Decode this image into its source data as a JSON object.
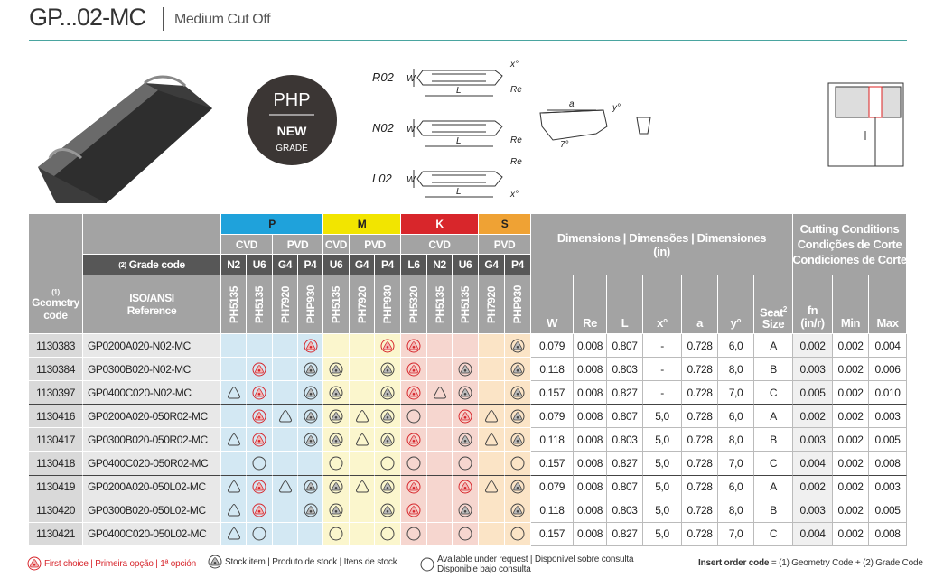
{
  "header": {
    "title": "GP...02-MC",
    "subtitle": "Medium Cut Off"
  },
  "badge": {
    "brand": "PHP",
    "new": "NEW",
    "grade": "GRADE"
  },
  "diagram": {
    "variants": [
      "R02",
      "N02",
      "L02"
    ],
    "w": "W",
    "l": "L",
    "re": "Re",
    "x": "x°",
    "a": "a",
    "y": "y°",
    "angle": "7°"
  },
  "table": {
    "geometry_note": "(1)",
    "geometry_label": "Geometry code",
    "grade_note": "(2)",
    "grade_label": "Grade code",
    "iso_label": "ISO/ANSI Reference",
    "groups": [
      {
        "name": "P",
        "color": "#1fa2db",
        "light": "#d3e8f3"
      },
      {
        "name": "M",
        "color": "#f2e500",
        "light": "#fbf6cd"
      },
      {
        "name": "K",
        "color": "#d8262b",
        "light": "#f6d6cf"
      },
      {
        "name": "S",
        "color": "#efa234",
        "light": "#fbe4c6"
      }
    ],
    "grades": [
      {
        "group": 0,
        "process": "CVD",
        "code": "N2",
        "name": "PH5135"
      },
      {
        "group": 0,
        "process": "CVD",
        "code": "U6",
        "name": "PH5135"
      },
      {
        "group": 0,
        "process": "PVD",
        "code": "G4",
        "name": "PH7920"
      },
      {
        "group": 0,
        "process": "PVD",
        "code": "P4",
        "name": "PHP930"
      },
      {
        "group": 1,
        "process": "CVD",
        "code": "U6",
        "name": "PH5135"
      },
      {
        "group": 1,
        "process": "PVD",
        "code": "G4",
        "name": "PH7920"
      },
      {
        "group": 1,
        "process": "PVD",
        "code": "P4",
        "name": "PHP930"
      },
      {
        "group": 2,
        "process": "CVD",
        "code": "L6",
        "name": "PH5320"
      },
      {
        "group": 2,
        "process": "CVD",
        "code": "N2",
        "name": "PH5135"
      },
      {
        "group": 2,
        "process": "CVD",
        "code": "U6",
        "name": "PH5135"
      },
      {
        "group": 3,
        "process": "PVD",
        "code": "G4",
        "name": "PH7920"
      },
      {
        "group": 3,
        "process": "PVD",
        "code": "P4",
        "name": "PHP930"
      }
    ],
    "dims_title": "Dimensions | Dimensões | Dimensiones",
    "dims_unit": "(in)",
    "dim_cols": [
      "W",
      "Re",
      "L",
      "x°",
      "a",
      "y°"
    ],
    "seat_label": "Seat",
    "seat_note": "2",
    "size_label": "Size",
    "cut_title": [
      "Cutting Conditions",
      "Condições de Corte",
      "Condiciones de Corte"
    ],
    "fn_label": "fn",
    "fn_unit": "(in/r)",
    "min_label": "Min",
    "max_label": "Max",
    "rows": [
      {
        "code": "1130383",
        "iso": "GP0200A020-N02-MC",
        "grades": [
          null,
          null,
          null,
          "F",
          null,
          null,
          "F",
          "F",
          null,
          null,
          null,
          "S"
        ],
        "dims": [
          "0.079",
          "0.008",
          "0.807",
          "-",
          "0.728",
          "6,0",
          "A"
        ],
        "cut": [
          "0.002",
          "0.002",
          "0.004"
        ]
      },
      {
        "code": "1130384",
        "iso": "GP0300B020-N02-MC",
        "grades": [
          null,
          "F",
          null,
          "S",
          "S",
          null,
          "S",
          "F",
          null,
          "S",
          null,
          "S"
        ],
        "dims": [
          "0.118",
          "0.008",
          "0.803",
          "-",
          "0.728",
          "8,0",
          "B"
        ],
        "cut": [
          "0.003",
          "0.002",
          "0.006"
        ]
      },
      {
        "code": "1130397",
        "iso": "GP0400C020-N02-MC",
        "grades": [
          "T",
          "F",
          null,
          "S",
          "S",
          null,
          "S",
          "F",
          "T",
          "S",
          null,
          "S"
        ],
        "dims": [
          "0.157",
          "0.008",
          "0.827",
          "-",
          "0.728",
          "7,0",
          "C"
        ],
        "cut": [
          "0.005",
          "0.002",
          "0.010"
        ]
      },
      {
        "code": "1130416",
        "iso": "GP0200A020-050R02-MC",
        "grades": [
          null,
          "F",
          "T",
          "S",
          "S",
          "T",
          "S",
          "R",
          null,
          "F",
          "T",
          "S"
        ],
        "dims": [
          "0.079",
          "0.008",
          "0.807",
          "5,0",
          "0.728",
          "6,0",
          "A"
        ],
        "cut": [
          "0.002",
          "0.002",
          "0.003"
        ]
      },
      {
        "code": "1130417",
        "iso": "GP0300B020-050R02-MC",
        "grades": [
          "T",
          "F",
          null,
          "S",
          "S",
          "T",
          "S",
          "F",
          null,
          "S",
          "T",
          "S"
        ],
        "dims": [
          "0.118",
          "0.008",
          "0.803",
          "5,0",
          "0.728",
          "8,0",
          "B"
        ],
        "cut": [
          "0.003",
          "0.002",
          "0.005"
        ]
      },
      {
        "code": "1130418",
        "iso": "GP0400C020-050R02-MC",
        "grades": [
          null,
          "R",
          null,
          null,
          "R",
          null,
          "R",
          "R",
          null,
          "R",
          null,
          "R"
        ],
        "dims": [
          "0.157",
          "0.008",
          "0.827",
          "5,0",
          "0.728",
          "7,0",
          "C"
        ],
        "cut": [
          "0.004",
          "0.002",
          "0.008"
        ]
      },
      {
        "code": "1130419",
        "iso": "GP0200A020-050L02-MC",
        "grades": [
          "T",
          "F",
          "T",
          "S",
          "S",
          "T",
          "S",
          "F",
          null,
          "F",
          "T",
          "S"
        ],
        "dims": [
          "0.079",
          "0.008",
          "0.807",
          "5,0",
          "0.728",
          "6,0",
          "A"
        ],
        "cut": [
          "0.002",
          "0.002",
          "0.003"
        ]
      },
      {
        "code": "1130420",
        "iso": "GP0300B020-050L02-MC",
        "grades": [
          "T",
          "F",
          null,
          "S",
          "S",
          null,
          "S",
          "F",
          null,
          "S",
          null,
          "S"
        ],
        "dims": [
          "0.118",
          "0.008",
          "0.803",
          "5,0",
          "0.728",
          "8,0",
          "B"
        ],
        "cut": [
          "0.003",
          "0.002",
          "0.005"
        ]
      },
      {
        "code": "1130421",
        "iso": "GP0400C020-050L02-MC",
        "grades": [
          "T",
          "R",
          null,
          null,
          "R",
          null,
          "R",
          "R",
          null,
          "R",
          null,
          "R"
        ],
        "dims": [
          "0.157",
          "0.008",
          "0.827",
          "5,0",
          "0.728",
          "7,0",
          "C"
        ],
        "cut": [
          "0.004",
          "0.002",
          "0.008"
        ]
      }
    ]
  },
  "legend": {
    "first": "First choice | Primeira opção | 1ª opción",
    "stock": "Stock item | Produto de stock | Itens de stock",
    "request": [
      "Available under request | Disponível sobre consulta",
      "Disponible bajo consulta"
    ],
    "order_label": "Insert order code",
    "order_text": " = (1) Geometry Code + (2) Grade Code"
  }
}
